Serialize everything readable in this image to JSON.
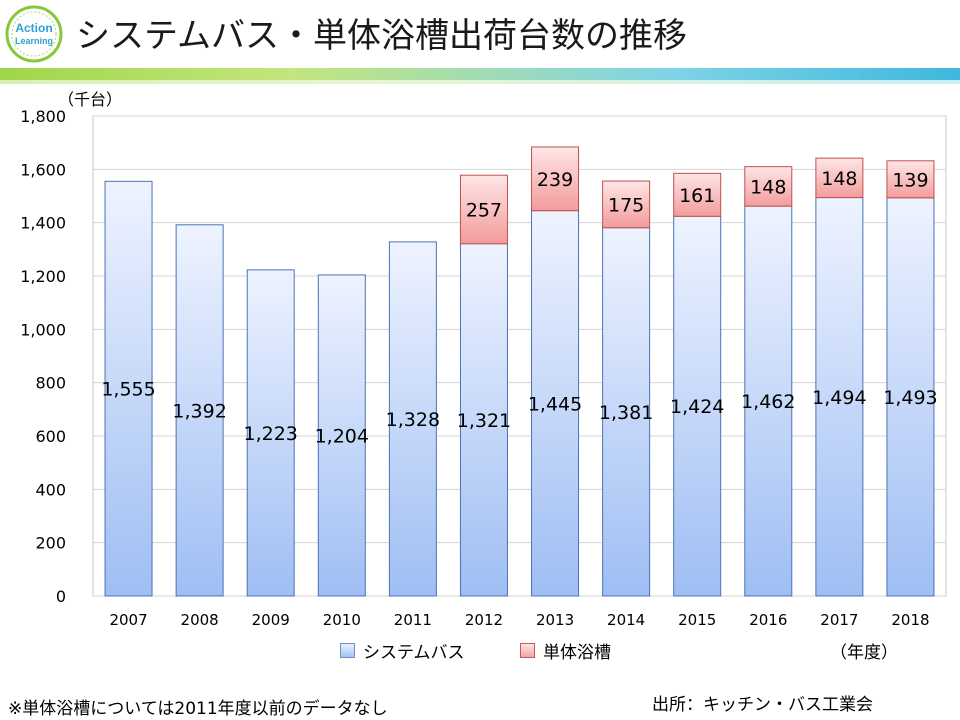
{
  "header": {
    "title": "システムバス・単体浴槽出荷台数の推移",
    "logo_text_1": "Action",
    "logo_text_2": "Learning"
  },
  "chart_data": {
    "type": "bar",
    "stacked": true,
    "title": "システムバス・単体浴槽出荷台数の推移",
    "ylabel": "（千台）",
    "xlabel": "（年度）",
    "ylim": [
      0,
      1800
    ],
    "ystep": 200,
    "yticks": [
      "0",
      "200",
      "400",
      "600",
      "800",
      "1,000",
      "1,200",
      "1,400",
      "1,600",
      "1,800"
    ],
    "categories": [
      "2007",
      "2008",
      "2009",
      "2010",
      "2011",
      "2012",
      "2013",
      "2014",
      "2015",
      "2016",
      "2017",
      "2018"
    ],
    "series": [
      {
        "name": "システムバス",
        "values": [
          1555,
          1392,
          1223,
          1204,
          1328,
          1321,
          1445,
          1381,
          1424,
          1462,
          1494,
          1493
        ],
        "labels": [
          "1,555",
          "1,392",
          "1,223",
          "1,204",
          "1,328",
          "1,321",
          "1,445",
          "1,381",
          "1,424",
          "1,462",
          "1,494",
          "1,493"
        ],
        "color": "#a4c4f6"
      },
      {
        "name": "単体浴槽",
        "values": [
          null,
          null,
          null,
          null,
          null,
          257,
          239,
          175,
          161,
          148,
          148,
          139
        ],
        "labels": [
          "",
          "",
          "",
          "",
          "",
          "257",
          "239",
          "175",
          "161",
          "148",
          "148",
          "139"
        ],
        "color": "#f4aaaa"
      }
    ],
    "legend": "bottom",
    "grid": true
  },
  "footer": {
    "note": "※単体浴槽については2011年度以前のデータなし",
    "source": "出所：キッチン・バス工業会"
  }
}
